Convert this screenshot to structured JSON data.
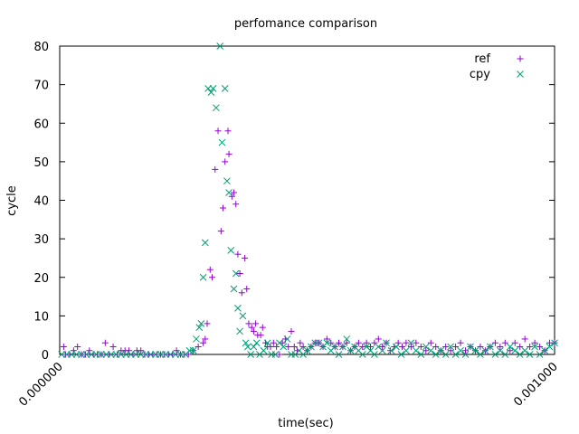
{
  "chart_data": {
    "type": "scatter",
    "title": "perfomance comparison",
    "xlabel": "time(sec)",
    "ylabel": "cycle",
    "xlim": [
      0,
      0.001
    ],
    "ylim": [
      0,
      80
    ],
    "xticks": [
      "0.000000",
      "0.001000"
    ],
    "yticks": [
      0,
      10,
      20,
      30,
      40,
      50,
      60,
      70,
      80
    ],
    "grid": false,
    "legend_position": "top-right",
    "series": [
      {
        "name": "ref",
        "marker": "plus",
        "color": "#9400d3",
        "points": [
          [
            8e-06,
            2
          ],
          [
            1.2e-05,
            0
          ],
          [
            2e-05,
            0
          ],
          [
            2.8e-05,
            1
          ],
          [
            3.6e-05,
            2
          ],
          [
            4.4e-05,
            0
          ],
          [
            5.2e-05,
            0
          ],
          [
            6e-05,
            1
          ],
          [
            6.8e-05,
            0
          ],
          [
            7.6e-05,
            0
          ],
          [
            8.4e-05,
            0
          ],
          [
            9.2e-05,
            3
          ],
          [
            0.0001,
            0
          ],
          [
            0.000108,
            2
          ],
          [
            0.000116,
            0
          ],
          [
            0.000124,
            1
          ],
          [
            0.000132,
            1
          ],
          [
            0.00014,
            1
          ],
          [
            0.000148,
            0
          ],
          [
            0.000156,
            1
          ],
          [
            0.000164,
            1
          ],
          [
            0.000172,
            0
          ],
          [
            0.00018,
            0
          ],
          [
            0.000188,
            0
          ],
          [
            0.000196,
            0
          ],
          [
            0.000204,
            0
          ],
          [
            0.000212,
            0
          ],
          [
            0.00022,
            0
          ],
          [
            0.000228,
            0
          ],
          [
            0.000236,
            1
          ],
          [
            0.000244,
            0
          ],
          [
            0.000252,
            0
          ],
          [
            0.00026,
            0
          ],
          [
            0.00027,
            1
          ],
          [
            0.00028,
            2
          ],
          [
            0.00029,
            3
          ],
          [
            0.000294,
            4
          ],
          [
            0.000298,
            8
          ],
          [
            0.000304,
            22
          ],
          [
            0.000308,
            20
          ],
          [
            0.000314,
            48
          ],
          [
            0.00032,
            58
          ],
          [
            0.000326,
            32
          ],
          [
            0.00033,
            38
          ],
          [
            0.000334,
            50
          ],
          [
            0.00034,
            58
          ],
          [
            0.000342,
            52
          ],
          [
            0.000348,
            41
          ],
          [
            0.000352,
            42
          ],
          [
            0.000356,
            39
          ],
          [
            0.00036,
            26
          ],
          [
            0.000364,
            21
          ],
          [
            0.000368,
            16
          ],
          [
            0.000374,
            25
          ],
          [
            0.000378,
            17
          ],
          [
            0.000382,
            8
          ],
          [
            0.000388,
            7
          ],
          [
            0.000392,
            6
          ],
          [
            0.000396,
            8
          ],
          [
            0.0004,
            5
          ],
          [
            0.000406,
            5
          ],
          [
            0.00041,
            7
          ],
          [
            0.000416,
            3
          ],
          [
            0.00042,
            2
          ],
          [
            0.000426,
            2
          ],
          [
            0.000432,
            3
          ],
          [
            0.000438,
            2
          ],
          [
            0.000444,
            0
          ],
          [
            0.00045,
            3
          ],
          [
            0.000456,
            4
          ],
          [
            0.000462,
            2
          ],
          [
            0.000468,
            6
          ],
          [
            0.000474,
            2
          ],
          [
            0.00048,
            1
          ],
          [
            0.000486,
            3
          ],
          [
            0.000492,
            2
          ],
          [
            0.0005,
            1
          ],
          [
            0.000508,
            2
          ],
          [
            0.000516,
            3
          ],
          [
            0.000524,
            3
          ],
          [
            0.000532,
            2
          ],
          [
            0.00054,
            4
          ],
          [
            0.000548,
            3
          ],
          [
            0.000556,
            2
          ],
          [
            0.000564,
            3
          ],
          [
            0.000572,
            2
          ],
          [
            0.00058,
            3
          ],
          [
            0.000588,
            1
          ],
          [
            0.000596,
            2
          ],
          [
            0.000604,
            3
          ],
          [
            0.000612,
            2
          ],
          [
            0.00062,
            3
          ],
          [
            0.000628,
            2
          ],
          [
            0.000636,
            3
          ],
          [
            0.000644,
            4
          ],
          [
            0.000652,
            2
          ],
          [
            0.00066,
            3
          ],
          [
            0.000668,
            1
          ],
          [
            0.000676,
            2
          ],
          [
            0.000684,
            3
          ],
          [
            0.000692,
            2
          ],
          [
            0.0007,
            3
          ],
          [
            0.00071,
            2
          ],
          [
            0.00072,
            3
          ],
          [
            0.00073,
            2
          ],
          [
            0.00074,
            1
          ],
          [
            0.00075,
            3
          ],
          [
            0.00076,
            2
          ],
          [
            0.00077,
            1
          ],
          [
            0.00078,
            2
          ],
          [
            0.00079,
            1
          ],
          [
            0.0008,
            2
          ],
          [
            0.00081,
            3
          ],
          [
            0.00082,
            1
          ],
          [
            0.00083,
            2
          ],
          [
            0.00084,
            1
          ],
          [
            0.00085,
            2
          ],
          [
            0.00086,
            1
          ],
          [
            0.00087,
            2
          ],
          [
            0.00088,
            3
          ],
          [
            0.00089,
            2
          ],
          [
            0.0009,
            3
          ],
          [
            0.00091,
            1
          ],
          [
            0.00092,
            3
          ],
          [
            0.00093,
            2
          ],
          [
            0.00094,
            4
          ],
          [
            0.00095,
            2
          ],
          [
            0.00096,
            3
          ],
          [
            0.00097,
            2
          ],
          [
            0.00098,
            1
          ],
          [
            0.00099,
            3
          ],
          [
            0.001,
            3
          ]
        ]
      },
      {
        "name": "cpy",
        "marker": "cross",
        "color": "#009e73",
        "points": [
          [
            4e-06,
            0
          ],
          [
            1.4e-05,
            0
          ],
          [
            2.4e-05,
            0
          ],
          [
            3.4e-05,
            0
          ],
          [
            4.4e-05,
            0
          ],
          [
            5.4e-05,
            0
          ],
          [
            6.4e-05,
            0
          ],
          [
            7.4e-05,
            0
          ],
          [
            8.4e-05,
            0
          ],
          [
            9.4e-05,
            0
          ],
          [
            0.000104,
            0
          ],
          [
            0.000114,
            0
          ],
          [
            0.000124,
            0
          ],
          [
            0.000134,
            0
          ],
          [
            0.000144,
            0
          ],
          [
            0.000154,
            0
          ],
          [
            0.000164,
            0
          ],
          [
            0.000174,
            0
          ],
          [
            0.000184,
            0
          ],
          [
            0.000194,
            0
          ],
          [
            0.000204,
            0
          ],
          [
            0.000214,
            0
          ],
          [
            0.000224,
            0
          ],
          [
            0.000234,
            0
          ],
          [
            0.000244,
            0
          ],
          [
            0.000254,
            0
          ],
          [
            0.000262,
            1
          ],
          [
            0.00027,
            1
          ],
          [
            0.000276,
            4
          ],
          [
            0.000282,
            7
          ],
          [
            0.000286,
            8
          ],
          [
            0.00029,
            20
          ],
          [
            0.000294,
            29
          ],
          [
            0.0003,
            69
          ],
          [
            0.000306,
            68
          ],
          [
            0.00031,
            69
          ],
          [
            0.000316,
            64
          ],
          [
            0.000324,
            80
          ],
          [
            0.000328,
            55
          ],
          [
            0.000334,
            69
          ],
          [
            0.000338,
            45
          ],
          [
            0.000342,
            42
          ],
          [
            0.000346,
            27
          ],
          [
            0.000352,
            17
          ],
          [
            0.000356,
            21
          ],
          [
            0.00036,
            12
          ],
          [
            0.000364,
            6
          ],
          [
            0.00037,
            10
          ],
          [
            0.000376,
            3
          ],
          [
            0.00038,
            2
          ],
          [
            0.000386,
            0
          ],
          [
            0.000392,
            2
          ],
          [
            0.000398,
            3
          ],
          [
            0.000404,
            0
          ],
          [
            0.000412,
            1
          ],
          [
            0.00042,
            3
          ],
          [
            0.000428,
            0
          ],
          [
            0.000436,
            0
          ],
          [
            0.000444,
            3
          ],
          [
            0.000452,
            2
          ],
          [
            0.00046,
            4
          ],
          [
            0.000468,
            0
          ],
          [
            0.000476,
            0
          ],
          [
            0.000484,
            1
          ],
          [
            0.000492,
            0
          ],
          [
            0.0005,
            1
          ],
          [
            0.000508,
            2
          ],
          [
            0.000516,
            3
          ],
          [
            0.000524,
            3
          ],
          [
            0.000532,
            2
          ],
          [
            0.00054,
            3
          ],
          [
            0.000548,
            1
          ],
          [
            0.000556,
            2
          ],
          [
            0.000564,
            0
          ],
          [
            0.000572,
            2
          ],
          [
            0.00058,
            4
          ],
          [
            0.000588,
            1
          ],
          [
            0.000596,
            2
          ],
          [
            0.000604,
            1
          ],
          [
            0.000612,
            0
          ],
          [
            0.00062,
            2
          ],
          [
            0.000628,
            1
          ],
          [
            0.000636,
            0
          ],
          [
            0.000644,
            2
          ],
          [
            0.000652,
            1
          ],
          [
            0.00066,
            3
          ],
          [
            0.00067,
            1
          ],
          [
            0.00068,
            2
          ],
          [
            0.00069,
            0
          ],
          [
            0.0007,
            1
          ],
          [
            0.00071,
            3
          ],
          [
            0.00072,
            1
          ],
          [
            0.00073,
            0
          ],
          [
            0.00074,
            2
          ],
          [
            0.00075,
            1
          ],
          [
            0.00076,
            0
          ],
          [
            0.00077,
            1
          ],
          [
            0.00078,
            0
          ],
          [
            0.00079,
            2
          ],
          [
            0.0008,
            0
          ],
          [
            0.00081,
            1
          ],
          [
            0.00082,
            0
          ],
          [
            0.00083,
            2
          ],
          [
            0.00084,
            1
          ],
          [
            0.00085,
            0
          ],
          [
            0.00086,
            1
          ],
          [
            0.00087,
            2
          ],
          [
            0.00088,
            0
          ],
          [
            0.00089,
            1
          ],
          [
            0.0009,
            0
          ],
          [
            0.00091,
            2
          ],
          [
            0.00092,
            1
          ],
          [
            0.00093,
            0
          ],
          [
            0.00094,
            1
          ],
          [
            0.00095,
            0
          ],
          [
            0.00096,
            2
          ],
          [
            0.00097,
            0
          ],
          [
            0.00098,
            1
          ],
          [
            0.00099,
            2
          ],
          [
            0.001,
            3
          ]
        ]
      }
    ]
  }
}
